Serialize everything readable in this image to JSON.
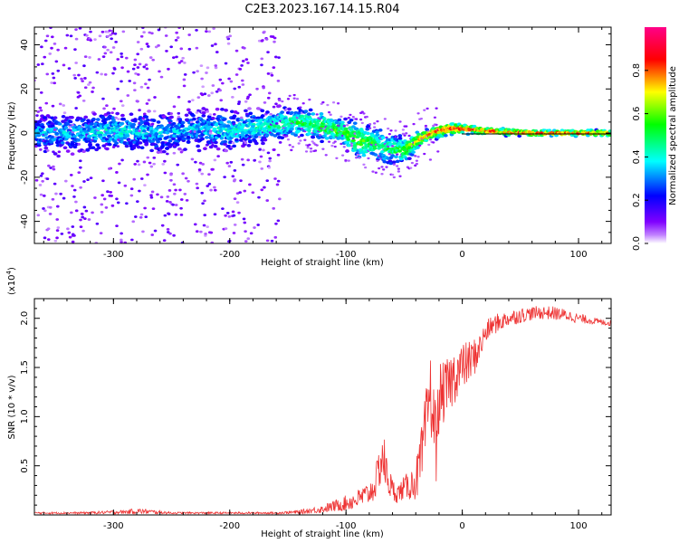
{
  "title": "C2E3.2023.167.14.15.R04",
  "chart_data": [
    {
      "type": "heatmap",
      "xlabel": "Height of straight line (km)",
      "ylabel": "Frequency (Hz)",
      "xlim": [
        -368,
        128
      ],
      "ylim": [
        -50,
        48
      ],
      "xticks": [
        -300,
        -200,
        -100,
        0,
        100
      ],
      "yticks": [
        -40,
        -20,
        0,
        20,
        40
      ],
      "colorbar": {
        "label": "Normalized spectral amplitude",
        "range": [
          0.0,
          1.0
        ],
        "ticks": [
          0.0,
          0.2,
          0.4,
          0.6,
          0.8
        ],
        "colormap": [
          "#ffffff",
          "#8000ff",
          "#0000ff",
          "#00ffff",
          "#00ff00",
          "#ffff00",
          "#ff0000",
          "#ff00aa"
        ]
      },
      "ridge": {
        "x": [
          -368,
          -340,
          -300,
          -260,
          -230,
          -200,
          -170,
          -140,
          -120,
          -100,
          -90,
          -80,
          -70,
          -60,
          -50,
          -40,
          -30,
          -20,
          -10,
          0,
          20,
          60,
          128
        ],
        "center": [
          0,
          0,
          1,
          0,
          2,
          1,
          3,
          5,
          3,
          0,
          -3,
          -4,
          -6,
          -7,
          -8,
          -4,
          -1,
          1,
          2,
          2,
          1,
          0,
          0
        ],
        "spread": [
          6,
          6,
          6,
          6,
          6,
          6,
          5,
          5,
          5,
          5,
          6,
          6,
          6,
          5,
          4,
          3,
          2,
          2,
          2,
          1.5,
          1.2,
          1,
          1
        ],
        "peak": [
          0.35,
          0.35,
          0.4,
          0.35,
          0.35,
          0.4,
          0.45,
          0.5,
          0.55,
          0.55,
          0.6,
          0.55,
          0.5,
          0.5,
          0.6,
          0.7,
          0.8,
          0.85,
          0.9,
          0.9,
          0.85,
          0.85,
          0.8
        ]
      },
      "scatter_region_x": [
        -368,
        -155
      ]
    },
    {
      "type": "line",
      "xlabel": "Height of straight line (km)",
      "ylabel": "SNR (10 * v/v)",
      "exponent_label": "(x10",
      "exponent_value": "4",
      "exponent_close": ")",
      "xlim": [
        -368,
        128
      ],
      "ylim": [
        0,
        2.2
      ],
      "xticks": [
        -300,
        -200,
        -100,
        0,
        100
      ],
      "yticks": [
        0.5,
        1.0,
        1.5,
        2.0
      ],
      "yticklabels": [
        "0.5",
        "1.0",
        "1.5",
        "2.0"
      ],
      "color": "#ee3333",
      "series": [
        {
          "name": "SNR",
          "x": [
            -368,
            -330,
            -290,
            -280,
            -250,
            -200,
            -160,
            -140,
            -120,
            -110,
            -100,
            -90,
            -80,
            -75,
            -70,
            -68,
            -65,
            -60,
            -55,
            -50,
            -45,
            -40,
            -35,
            -30,
            -28,
            -25,
            -22,
            -20,
            -15,
            -10,
            -5,
            0,
            5,
            10,
            15,
            20,
            25,
            30,
            40,
            50,
            60,
            70,
            80,
            90,
            100,
            110,
            120,
            128
          ],
          "mean": [
            0.02,
            0.02,
            0.03,
            0.04,
            0.02,
            0.02,
            0.02,
            0.03,
            0.06,
            0.09,
            0.12,
            0.16,
            0.22,
            0.3,
            0.55,
            0.6,
            0.4,
            0.25,
            0.22,
            0.28,
            0.3,
            0.35,
            0.55,
            1.0,
            1.3,
            1.0,
            0.7,
            1.2,
            1.25,
            1.35,
            1.45,
            1.5,
            1.55,
            1.6,
            1.7,
            1.85,
            1.92,
            1.95,
            2.0,
            2.03,
            2.05,
            2.06,
            2.05,
            2.03,
            2.0,
            1.98,
            1.96,
            1.95
          ],
          "jitter": [
            0.01,
            0.01,
            0.02,
            0.03,
            0.01,
            0.01,
            0.01,
            0.02,
            0.04,
            0.06,
            0.08,
            0.1,
            0.12,
            0.15,
            0.25,
            0.3,
            0.2,
            0.12,
            0.1,
            0.12,
            0.15,
            0.2,
            0.35,
            0.4,
            0.4,
            0.4,
            0.4,
            0.35,
            0.3,
            0.3,
            0.28,
            0.25,
            0.22,
            0.2,
            0.15,
            0.12,
            0.1,
            0.1,
            0.08,
            0.08,
            0.07,
            0.07,
            0.07,
            0.06,
            0.05,
            0.04,
            0.03,
            0.03
          ]
        }
      ]
    }
  ]
}
